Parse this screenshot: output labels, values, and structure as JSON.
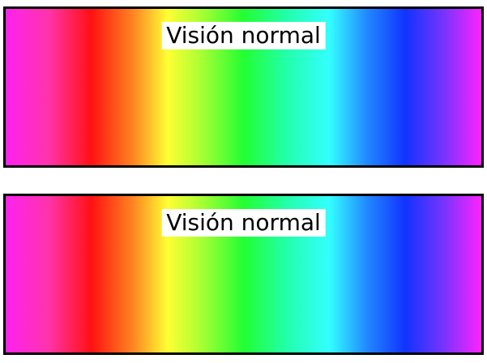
{
  "panels": [
    {
      "label": "Visión normal"
    },
    {
      "label": "Visión normal"
    }
  ],
  "colors": {
    "border": "#000000",
    "label_background": "#ffffff",
    "spectrum": [
      "#ff22ee",
      "#ff1111",
      "#ffff33",
      "#22ff33",
      "#33ffff",
      "#1133ff",
      "#ff22ff"
    ]
  }
}
